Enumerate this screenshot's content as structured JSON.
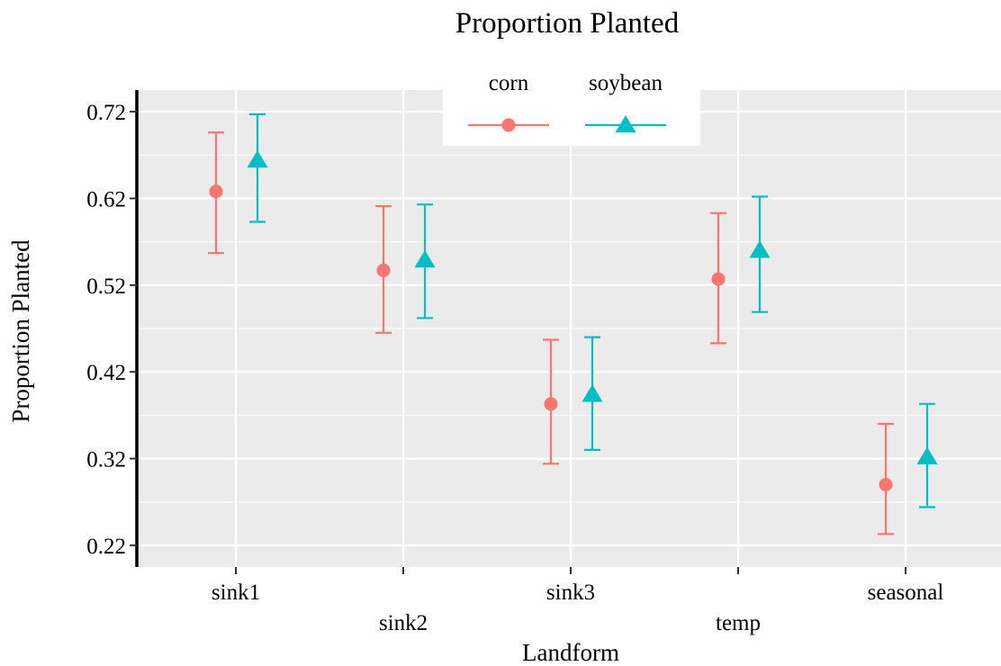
{
  "chart_data": {
    "type": "scatter",
    "title": "Proportion Planted",
    "xlabel": "Landform",
    "ylabel": "Proportion Planted",
    "categories": [
      "sink1",
      "sink2",
      "sink3",
      "temp",
      "seasonal"
    ],
    "y_ticks": [
      "0.22",
      "0.32",
      "0.42",
      "0.52",
      "0.62",
      "0.72"
    ],
    "ylim": [
      0.195,
      0.745
    ],
    "grid": true,
    "legend_position": "top",
    "series": [
      {
        "name": "corn",
        "marker": "circle",
        "color": "#F8766D",
        "values": [
          0.628,
          0.537,
          0.383,
          0.527,
          0.29
        ],
        "lower": [
          0.557,
          0.465,
          0.314,
          0.453,
          0.233
        ],
        "upper": [
          0.696,
          0.611,
          0.457,
          0.603,
          0.36
        ]
      },
      {
        "name": "soybean",
        "marker": "triangle",
        "color": "#00BFC4",
        "values": [
          0.664,
          0.549,
          0.394,
          0.56,
          0.322
        ],
        "lower": [
          0.593,
          0.482,
          0.33,
          0.489,
          0.264
        ],
        "upper": [
          0.717,
          0.613,
          0.46,
          0.622,
          0.383
        ]
      }
    ]
  }
}
